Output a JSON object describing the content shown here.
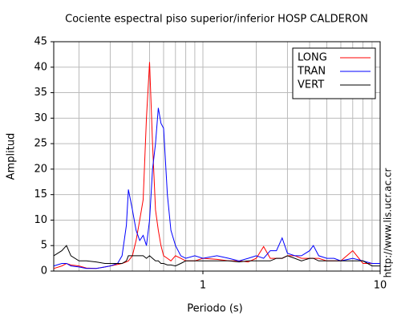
{
  "chart_data": {
    "type": "line",
    "title": "Cociente espectral piso superior/inferior  HOSP CALDERON",
    "x_label": "Periodo (s)",
    "y_label": "Amplitud",
    "annotation": "http://www.lis.ucr.ac.cr",
    "log_x": true,
    "grid": true,
    "legend": "top-right",
    "xlim": [
      0.144,
      10
    ],
    "xticks": [
      1,
      10
    ],
    "xminor": [
      0.2,
      0.3,
      0.4,
      0.5,
      0.6,
      0.7,
      0.8,
      0.9,
      2,
      3,
      4,
      5,
      6,
      7,
      8,
      9
    ],
    "ylim": [
      0,
      45
    ],
    "yticks": [
      0,
      5,
      10,
      15,
      20,
      25,
      30,
      35,
      40,
      45
    ],
    "x": [
      0.144,
      0.16,
      0.17,
      0.18,
      0.2,
      0.22,
      0.25,
      0.28,
      0.3,
      0.33,
      0.35,
      0.37,
      0.38,
      0.4,
      0.42,
      0.44,
      0.46,
      0.48,
      0.5,
      0.52,
      0.54,
      0.56,
      0.58,
      0.6,
      0.63,
      0.66,
      0.7,
      0.75,
      0.8,
      0.9,
      1,
      1.2,
      1.4,
      1.6,
      1.8,
      2,
      2.2,
      2.4,
      2.6,
      2.8,
      3,
      3.3,
      3.6,
      4,
      4.2,
      4.5,
      5,
      5.5,
      6,
      7,
      8,
      9,
      10
    ],
    "series": [
      {
        "name": "LONG",
        "color": "#ff0000",
        "values": [
          0.5,
          1,
          1.5,
          1.2,
          1,
          0.6,
          0.5,
          0.8,
          1,
          1.3,
          1.5,
          1.8,
          2,
          3,
          6,
          10,
          14,
          30,
          41,
          25,
          12,
          8,
          5,
          3,
          2.5,
          2,
          3,
          2.5,
          2,
          2,
          2.5,
          2.3,
          2,
          2,
          1.8,
          2.5,
          4.8,
          2.5,
          2.5,
          2.5,
          3,
          3,
          2.5,
          2.5,
          2.5,
          2.5,
          2,
          2,
          2,
          4,
          1.5,
          1.5,
          1.5
        ]
      },
      {
        "name": "TRAN",
        "color": "#0000ff",
        "values": [
          1,
          1.5,
          1.5,
          1,
          0.8,
          0.5,
          0.5,
          0.8,
          1,
          1.5,
          3,
          9,
          16,
          12,
          8,
          6,
          7,
          5,
          10,
          20,
          25,
          32,
          29,
          28,
          15,
          8,
          5,
          3,
          2.5,
          3,
          2.5,
          3,
          2.5,
          2,
          2.5,
          3,
          2.5,
          4,
          4,
          6.5,
          3.5,
          3,
          3,
          4,
          5,
          3,
          2.5,
          2.5,
          2,
          2.5,
          2,
          1.5,
          1.5
        ]
      },
      {
        "name": "VERT",
        "color": "#000000",
        "values": [
          3,
          4,
          5,
          3,
          2,
          2,
          1.8,
          1.5,
          1.5,
          1.5,
          1.5,
          2,
          3,
          3,
          3,
          3,
          3,
          2.5,
          3,
          2.5,
          2,
          2,
          1.5,
          1.5,
          1.2,
          1.2,
          1,
          1.5,
          2,
          2,
          2,
          2,
          2,
          1.8,
          2,
          2,
          2,
          2,
          2.5,
          2.5,
          3,
          2.5,
          2,
          2.5,
          2.5,
          2,
          2,
          2,
          2,
          2,
          2,
          1,
          1
        ]
      }
    ]
  }
}
